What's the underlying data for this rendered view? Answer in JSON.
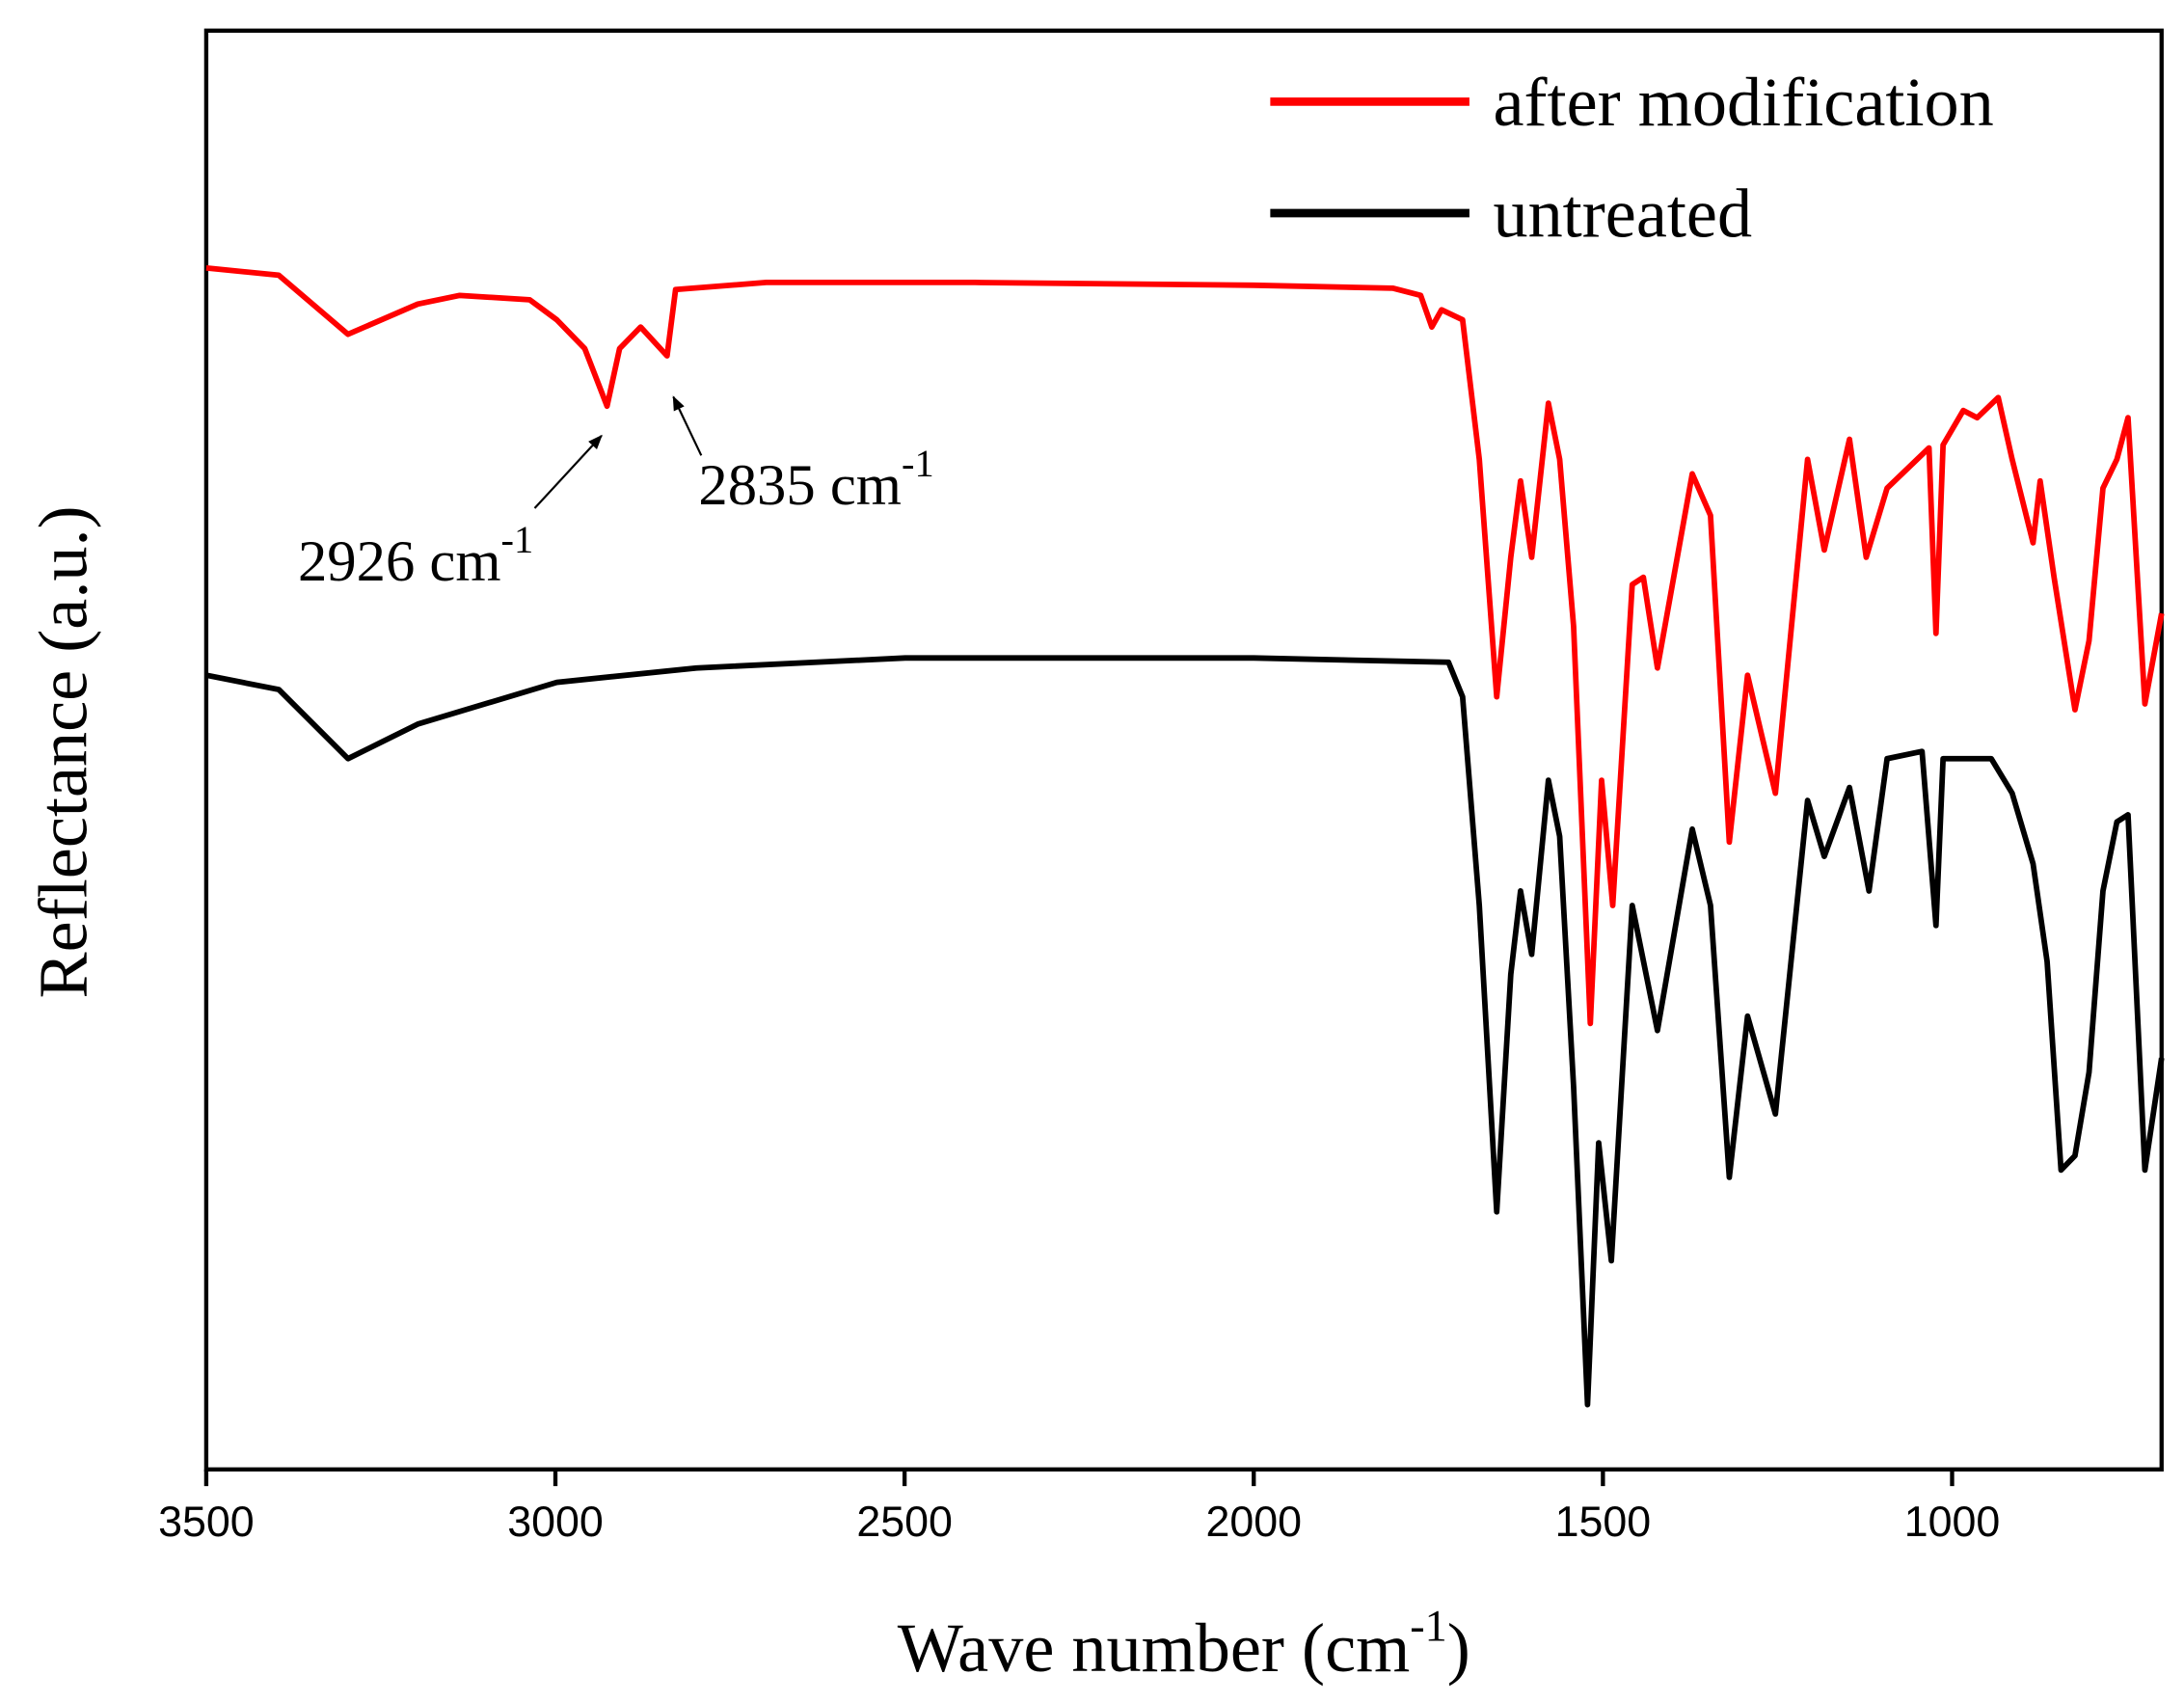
{
  "chart_data": {
    "type": "line",
    "xlabel": {
      "text": "Wave number (cm",
      "sup": "-1",
      "end": ")"
    },
    "ylabel": "Reflectance (a.u.)",
    "xlim": [
      3500,
      700
    ],
    "ylim": [
      0,
      100
    ],
    "xticks": [
      3500,
      3000,
      2500,
      2000,
      1500,
      1000
    ],
    "legend": "upper right",
    "annotations": [
      {
        "text": "2926 cm",
        "sup": "-1",
        "x": 2926,
        "y": 73.1
      },
      {
        "text": "2835 cm",
        "sup": "-1",
        "x": 2835,
        "y": 75.8
      }
    ],
    "series": [
      {
        "name": "after modification",
        "color": "#ff0000",
        "x": [
          3500,
          3396,
          3297,
          3197,
          3137,
          3037,
          2998,
          2958,
          2926,
          2908,
          2878,
          2840,
          2828,
          2698,
          2399,
          2000,
          1801,
          1761,
          1745,
          1731,
          1701,
          1677,
          1652,
          1632,
          1618,
          1602,
          1578,
          1562,
          1542,
          1518,
          1502,
          1486,
          1458,
          1442,
          1422,
          1372,
          1346,
          1319,
          1293,
          1253,
          1207,
          1183,
          1147,
          1123,
          1093,
          1033,
          1023,
          1013,
          984,
          964,
          934,
          914,
          884,
          874,
          854,
          824,
          804,
          784,
          764,
          748,
          724,
          700
        ],
        "values": [
          83.5,
          83.0,
          78.9,
          81.0,
          81.6,
          81.3,
          79.9,
          77.9,
          73.9,
          77.9,
          79.4,
          77.4,
          82.0,
          82.5,
          82.5,
          82.3,
          82.1,
          81.6,
          79.4,
          80.6,
          79.9,
          70.2,
          53.7,
          63.4,
          68.7,
          63.4,
          74.1,
          70.2,
          58.6,
          31.0,
          47.9,
          39.2,
          61.5,
          62.0,
          55.7,
          69.2,
          66.3,
          43.6,
          55.2,
          47.0,
          70.2,
          63.9,
          71.6,
          63.4,
          68.2,
          71.0,
          58.1,
          71.2,
          73.6,
          73.1,
          74.5,
          70.2,
          64.4,
          68.7,
          62.0,
          52.8,
          57.6,
          68.2,
          70.2,
          73.1,
          53.2,
          59.5
        ]
      },
      {
        "name": "untreated",
        "color": "#000000",
        "x": [
          3500,
          3396,
          3297,
          3197,
          2998,
          2798,
          2499,
          2000,
          1721,
          1701,
          1677,
          1652,
          1632,
          1618,
          1602,
          1578,
          1562,
          1542,
          1522,
          1506,
          1488,
          1458,
          1422,
          1372,
          1346,
          1319,
          1293,
          1253,
          1207,
          1183,
          1147,
          1119,
          1093,
          1043,
          1023,
          1013,
          944,
          914,
          884,
          864,
          844,
          824,
          804,
          784,
          764,
          748,
          724,
          700
        ],
        "values": [
          55.2,
          54.2,
          49.4,
          51.8,
          54.7,
          55.7,
          56.4,
          56.4,
          56.1,
          53.7,
          39.2,
          17.9,
          34.4,
          40.2,
          35.8,
          47.9,
          44.0,
          26.6,
          4.5,
          22.7,
          14.5,
          39.2,
          30.5,
          44.5,
          39.2,
          20.3,
          31.5,
          24.7,
          46.5,
          42.6,
          47.4,
          40.2,
          49.4,
          49.9,
          37.8,
          49.4,
          49.4,
          47.0,
          42.1,
          35.3,
          20.8,
          21.8,
          27.6,
          40.2,
          45.0,
          45.5,
          20.8,
          28.6
        ]
      }
    ]
  }
}
